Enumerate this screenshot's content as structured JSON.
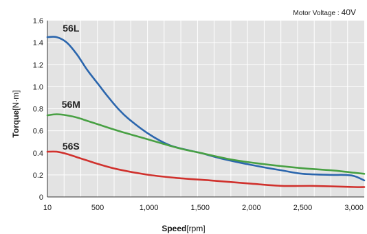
{
  "chart_data": {
    "type": "line",
    "note": {
      "label": "Motor Voltage :",
      "value": "40V"
    },
    "xlabel": {
      "main": "Speed",
      "unit": "[rpm]"
    },
    "ylabel": {
      "main": "Torque",
      "unit": "[N·m]"
    },
    "xlim": [
      10,
      3100
    ],
    "ylim": [
      0,
      1.6
    ],
    "xtick_values": [
      10,
      500,
      1000,
      1500,
      2000,
      2500,
      3000
    ],
    "xtick_labels": [
      "10",
      "500",
      "1,000",
      "1,500",
      "2,000",
      "2,500",
      "3,000"
    ],
    "ytick_values": [
      0,
      0.2,
      0.4,
      0.6,
      0.8,
      1.0,
      1.2,
      1.4,
      1.6
    ],
    "ytick_labels": [
      "0",
      "0.2",
      "0.4",
      "0.6",
      "0.8",
      "1.0",
      "1.2",
      "1.4",
      "1.6"
    ],
    "grid": true,
    "background": "#e3e3e3",
    "gridColor": "#ffffff",
    "series": [
      {
        "name": "56L",
        "color": "#2b66ad",
        "x": [
          10,
          100,
          200,
          300,
          400,
          500,
          600,
          700,
          800,
          1000,
          1200,
          1400,
          1500,
          1700,
          2000,
          2300,
          2500,
          2800,
          2900,
          3000,
          3100
        ],
        "y": [
          1.45,
          1.45,
          1.4,
          1.29,
          1.15,
          1.03,
          0.91,
          0.8,
          0.71,
          0.57,
          0.47,
          0.42,
          0.4,
          0.35,
          0.29,
          0.24,
          0.21,
          0.2,
          0.2,
          0.19,
          0.15
        ]
      },
      {
        "name": "56M",
        "color": "#48a043",
        "x": [
          10,
          100,
          200,
          300,
          400,
          500,
          700,
          1000,
          1300,
          1500,
          1800,
          2100,
          2500,
          2800,
          3000,
          3100
        ],
        "y": [
          0.74,
          0.75,
          0.74,
          0.72,
          0.69,
          0.66,
          0.6,
          0.52,
          0.44,
          0.4,
          0.34,
          0.3,
          0.26,
          0.24,
          0.22,
          0.21
        ]
      },
      {
        "name": "56S",
        "color": "#d0312d",
        "x": [
          10,
          100,
          200,
          300,
          400,
          500,
          700,
          1000,
          1300,
          1600,
          2000,
          2300,
          2600,
          3000,
          3100
        ],
        "y": [
          0.41,
          0.41,
          0.39,
          0.36,
          0.33,
          0.3,
          0.25,
          0.2,
          0.17,
          0.15,
          0.12,
          0.1,
          0.1,
          0.09,
          0.09
        ]
      }
    ]
  }
}
